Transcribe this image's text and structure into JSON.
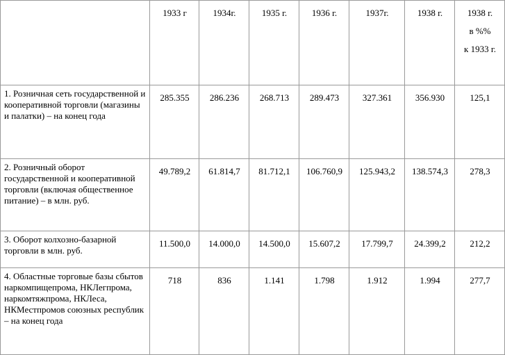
{
  "header": {
    "columns": [
      "1933 г",
      "1934г.",
      "1935 г.",
      "1936 г.",
      "1937г.",
      "1938 г."
    ],
    "last_column": [
      "1938 г.",
      "в %%",
      "к 1933 г."
    ]
  },
  "table": {
    "rows": [
      [
        "1. Розничная сеть государственной и кооперативной торговли (магазины и палатки) – на конец года",
        "285.355",
        "286.236",
        "268.713",
        "289.473",
        "327.361",
        "356.930",
        "125,1"
      ],
      [
        "2. Розничный оборот государственной и кооперативной торговли (включая общественное питание) – в млн. руб.",
        "49.789,2",
        "61.814,7",
        "81.712,1",
        "106.760,9",
        "125.943,2",
        "138.574,3",
        "278,3"
      ],
      [
        "3. Оборот колхозно-базарной торговли в млн. руб.",
        "11.500,0",
        "14.000,0",
        "14.500,0",
        "15.607,2",
        "17.799,7",
        "24.399,2",
        "212,2"
      ],
      [
        "4. Областные торговые базы сбытов наркомпищепрома, НКЛегпрома, наркомтяжпрома, НКЛеса, НКМестпромов союзных республик – на конец года",
        "718",
        "836",
        "1.141",
        "1.798",
        "1.912",
        "1.994",
        "277,7"
      ]
    ]
  }
}
